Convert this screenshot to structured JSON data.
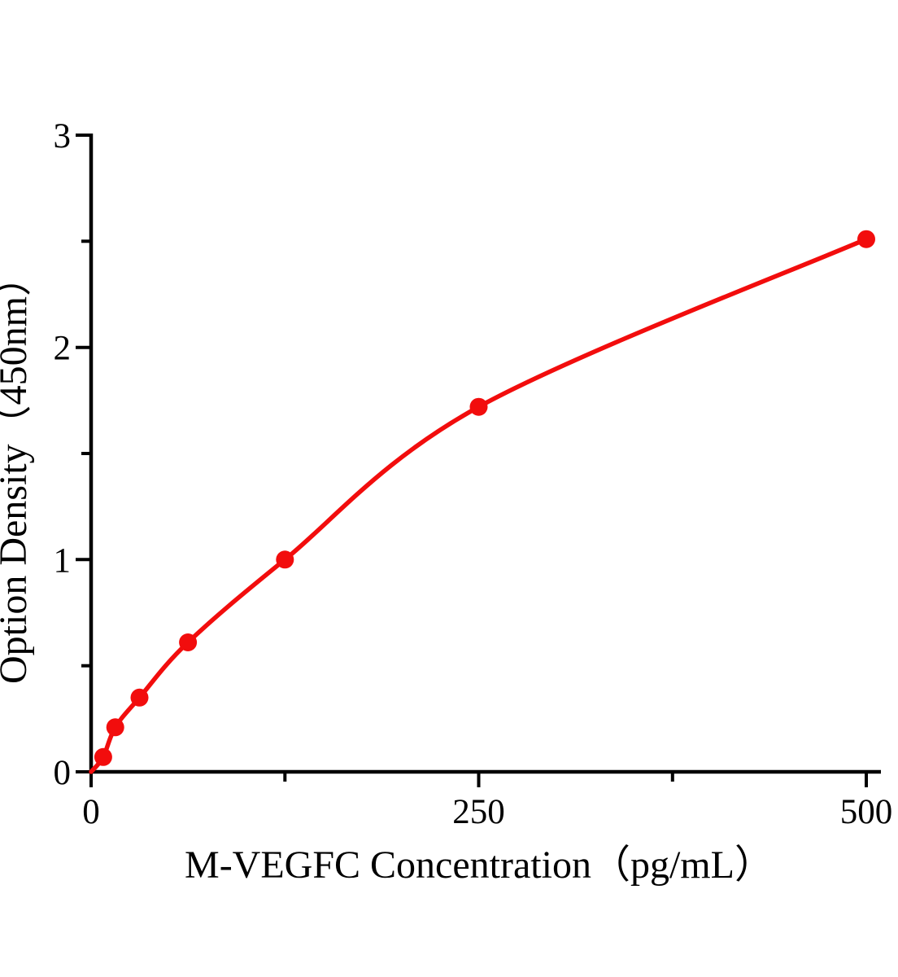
{
  "figure": {
    "background_color": "#ffffff",
    "axis_color": "#000000",
    "accent_color": "#f20d0d"
  },
  "chart_data": {
    "type": "scatter",
    "title": "",
    "xlabel": "M-VEGFC Concentration（pg/mL）",
    "ylabel": "Option Density（450nm）",
    "x": [
      7.8,
      15.6,
      31.2,
      62.5,
      125,
      250,
      500
    ],
    "y": [
      0.07,
      0.21,
      0.35,
      0.61,
      1.0,
      1.72,
      2.51
    ],
    "curve_start": {
      "x": 0,
      "y": 0
    },
    "fit_curve": true,
    "xlim": [
      0,
      500
    ],
    "ylim": [
      0,
      3
    ],
    "x_major_ticks": [
      0,
      250,
      500
    ],
    "x_major_tick_labels": [
      "0",
      "250",
      "500"
    ],
    "x_minor_ticks": [
      125,
      375
    ],
    "y_major_ticks": [
      0,
      1,
      2,
      3
    ],
    "y_major_tick_labels": [
      "0",
      "1",
      "2",
      "3"
    ],
    "y_minor_ticks": [
      0.5,
      1.5,
      2.5
    ],
    "grid": false,
    "legend": null,
    "series_color": "#f20d0d",
    "marker": "circle"
  }
}
